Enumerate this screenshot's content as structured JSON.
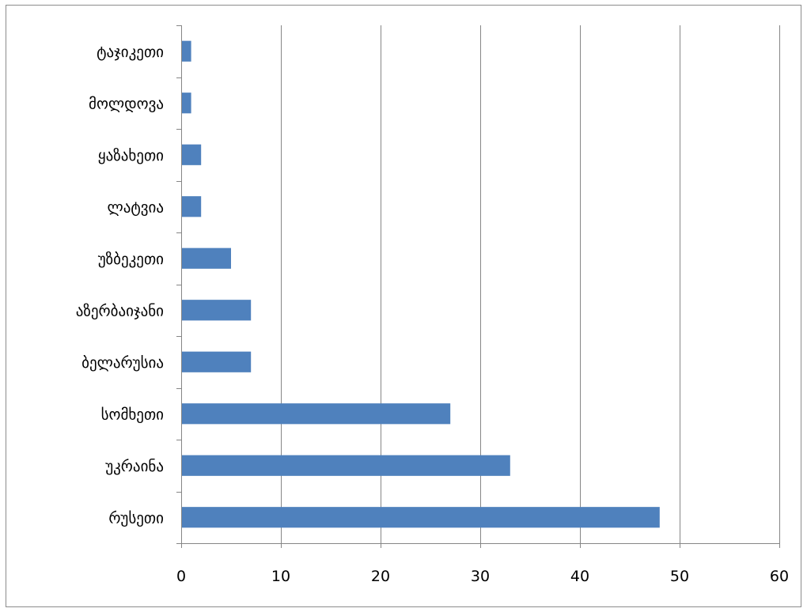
{
  "chart_data": {
    "type": "bar",
    "orientation": "horizontal",
    "categories": [
      "რუსეთი",
      "უკრაინა",
      "სომხეთი",
      "ბელარუსია",
      "აზერბაიჯანი",
      "უზბეკეთი",
      "ლატვია",
      "ყაზახეთი",
      "მოლდოვა",
      "ტაჯიკეთი"
    ],
    "values": [
      48,
      33,
      27,
      7,
      7,
      5,
      2,
      2,
      1,
      1
    ],
    "xlim": [
      0,
      60
    ],
    "xticks": [
      "0",
      "10",
      "20",
      "30",
      "40",
      "50",
      "60"
    ],
    "title": "",
    "xlabel": "",
    "ylabel": "",
    "grid": "vertical",
    "legend": "none",
    "colors": {
      "bar": "#4f81bd",
      "grid": "#868686",
      "axis": "#868686",
      "text": "#000000"
    }
  }
}
